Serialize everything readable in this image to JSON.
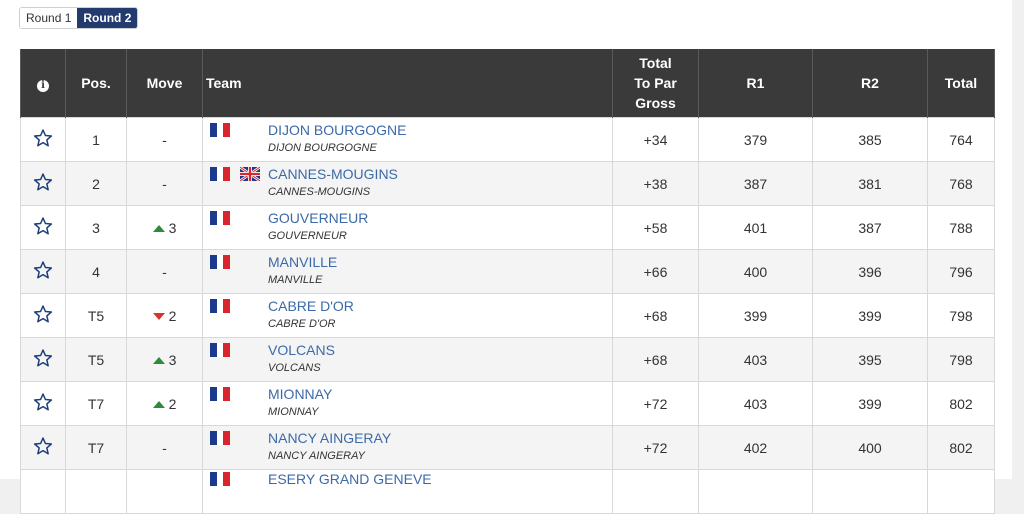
{
  "rounds": [
    "Round 1",
    "Round 2"
  ],
  "active_round": 1,
  "headers": {
    "info": "i",
    "pos": "Pos.",
    "move": "Move",
    "team": "Team",
    "total_par_line1": "Total",
    "total_par_line2": "To Par",
    "total_par_line3": "Gross",
    "r1": "R1",
    "r2": "R2",
    "total": "Total"
  },
  "rows": [
    {
      "pos": "1",
      "move": "-",
      "move_dir": "none",
      "flags": [
        "fr"
      ],
      "team": "DIJON BOURGOGNE",
      "sub": "DIJON BOURGOGNE",
      "to_par": "+34",
      "r1": "379",
      "r2": "385",
      "total": "764"
    },
    {
      "pos": "2",
      "move": "-",
      "move_dir": "none",
      "flags": [
        "fr",
        "gb"
      ],
      "team": "CANNES-MOUGINS",
      "sub": "CANNES-MOUGINS",
      "to_par": "+38",
      "r1": "387",
      "r2": "381",
      "total": "768"
    },
    {
      "pos": "3",
      "move": "3",
      "move_dir": "up",
      "flags": [
        "fr"
      ],
      "team": "GOUVERNEUR",
      "sub": "GOUVERNEUR",
      "to_par": "+58",
      "r1": "401",
      "r2": "387",
      "total": "788"
    },
    {
      "pos": "4",
      "move": "-",
      "move_dir": "none",
      "flags": [
        "fr"
      ],
      "team": "MANVILLE",
      "sub": "MANVILLE",
      "to_par": "+66",
      "r1": "400",
      "r2": "396",
      "total": "796"
    },
    {
      "pos": "T5",
      "move": "2",
      "move_dir": "down",
      "flags": [
        "fr"
      ],
      "team": "CABRE D'OR",
      "sub": "CABRE D'OR",
      "to_par": "+68",
      "r1": "399",
      "r2": "399",
      "total": "798"
    },
    {
      "pos": "T5",
      "move": "3",
      "move_dir": "up",
      "flags": [
        "fr"
      ],
      "team": "VOLCANS",
      "sub": "VOLCANS",
      "to_par": "+68",
      "r1": "403",
      "r2": "395",
      "total": "798"
    },
    {
      "pos": "T7",
      "move": "2",
      "move_dir": "up",
      "flags": [
        "fr"
      ],
      "team": "MIONNAY",
      "sub": "MIONNAY",
      "to_par": "+72",
      "r1": "403",
      "r2": "399",
      "total": "802"
    },
    {
      "pos": "T7",
      "move": "-",
      "move_dir": "none",
      "flags": [
        "fr"
      ],
      "team": "NANCY AINGERAY",
      "sub": "NANCY AINGERAY",
      "to_par": "+72",
      "r1": "402",
      "r2": "400",
      "total": "802"
    }
  ],
  "partial_row": {
    "team": "ESERY GRAND GENEVE",
    "flags": [
      "fr"
    ]
  },
  "colors": {
    "header_bg": "#3a3a3a",
    "active_tab": "#233b6e",
    "link": "#3b6aa8",
    "up": "#2e8b3a",
    "down": "#d9342b"
  }
}
